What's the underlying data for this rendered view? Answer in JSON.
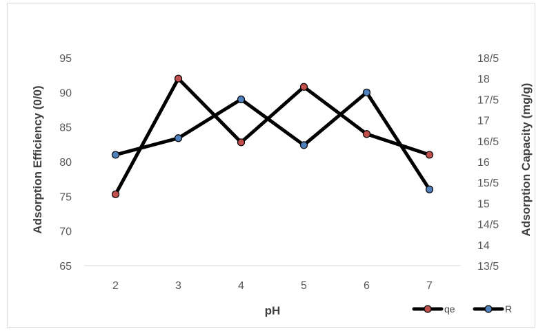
{
  "chart_data": {
    "type": "line",
    "title": "",
    "xlabel": "pH",
    "ylabel_left": "Adsorption Efficiency (0/0)",
    "ylabel_right": "Adsorption Capacity (mg/g)",
    "categories": [
      "2",
      "3",
      "4",
      "5",
      "6",
      "7"
    ],
    "left_axis": {
      "min": 65,
      "max": 95,
      "ticks": [
        "65",
        "70",
        "75",
        "80",
        "85",
        "90",
        "95"
      ]
    },
    "right_axis": {
      "min": 13.5,
      "max": 18.5,
      "ticks": [
        "13/5",
        "14",
        "14/5",
        "15",
        "15/5",
        "16",
        "16/5",
        "17",
        "17/5",
        "18",
        "18/5"
      ]
    },
    "series": [
      {
        "name": "qe",
        "axis": "left",
        "color": "#c0504d",
        "values": [
          75.3,
          92.0,
          82.8,
          90.8,
          84.0,
          81.0
        ]
      },
      {
        "name": "R",
        "axis": "left",
        "color": "#4f81bd",
        "values": [
          81.0,
          83.4,
          89.0,
          82.4,
          90.0,
          76.0
        ]
      }
    ],
    "line_color": "#000000",
    "grid": false,
    "legend_position": "bottom-right"
  }
}
